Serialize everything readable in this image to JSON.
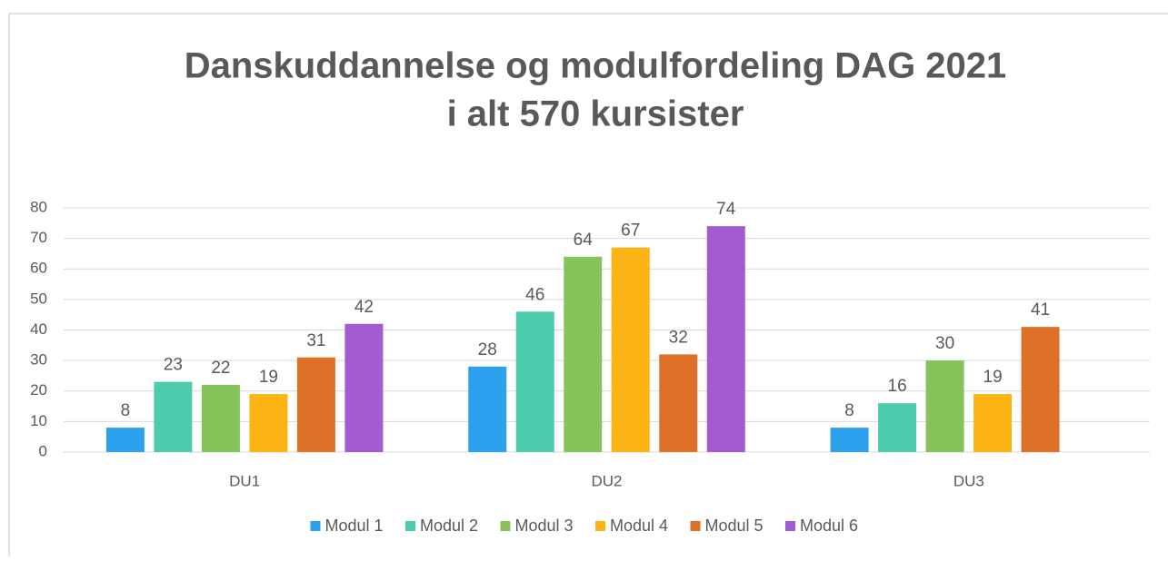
{
  "chart_data": {
    "type": "bar",
    "title": [
      "Danskuddannelse og modulfordeling DAG 2021",
      "i alt 570 kursister"
    ],
    "categories": [
      "DU1",
      "DU2",
      "DU3"
    ],
    "series": [
      {
        "name": "Modul 1",
        "color": "#2ea1ee",
        "values": [
          8,
          28,
          8
        ]
      },
      {
        "name": "Modul 2",
        "color": "#4ccbad",
        "values": [
          23,
          46,
          16
        ]
      },
      {
        "name": "Modul 3",
        "color": "#86c35a",
        "values": [
          22,
          64,
          30
        ]
      },
      {
        "name": "Modul 4",
        "color": "#fdb515",
        "values": [
          19,
          67,
          19
        ]
      },
      {
        "name": "Modul 5",
        "color": "#de7027",
        "values": [
          31,
          32,
          41
        ]
      },
      {
        "name": "Modul 6",
        "color": "#a25bd1",
        "values": [
          42,
          74,
          null
        ]
      }
    ],
    "ylim": [
      0,
      80
    ],
    "yticks": [
      0,
      10,
      20,
      30,
      40,
      50,
      60,
      70,
      80
    ],
    "grid": true,
    "legend": "bottom"
  }
}
